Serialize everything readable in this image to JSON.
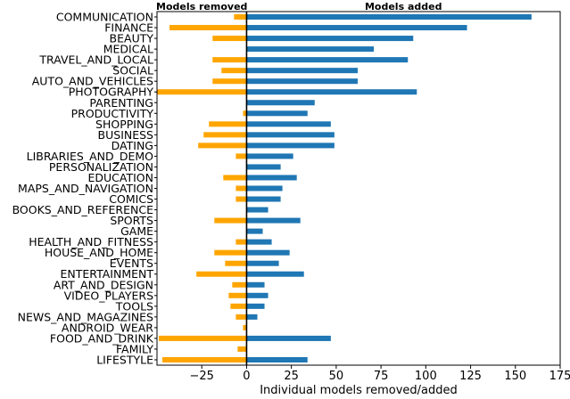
{
  "chart_data": {
    "type": "bar",
    "orientation": "horizontal",
    "categories": [
      "COMMUNICATION",
      "FINANCE",
      "BEAUTY",
      "MEDICAL",
      "TRAVEL_AND_LOCAL",
      "SOCIAL",
      "AUTO_AND_VEHICLES",
      "PHOTOGRAPHY",
      "PARENTING",
      "PRODUCTIVITY",
      "SHOPPING",
      "BUSINESS",
      "DATING",
      "LIBRARIES_AND_DEMO",
      "PERSONALIZATION",
      "EDUCATION",
      "MAPS_AND_NAVIGATION",
      "COMICS",
      "BOOKS_AND_REFERENCE",
      "SPORTS",
      "GAME",
      "HEALTH_AND_FITNESS",
      "HOUSE_AND_HOME",
      "EVENTS",
      "ENTERTAINMENT",
      "ART_AND_DESIGN",
      "VIDEO_PLAYERS",
      "TOOLS",
      "NEWS_AND_MAGAZINES",
      "ANDROID_WEAR",
      "FOOD_AND_DRINK",
      "FAMILY",
      "LIFESTYLE"
    ],
    "series": [
      {
        "name": "Models removed",
        "color": "#FFA500",
        "values": [
          -7,
          -43,
          -19,
          0,
          -19,
          -14,
          -19,
          -50,
          0,
          -2,
          -21,
          -24,
          -27,
          -6,
          0,
          -13,
          -6,
          -6,
          0,
          -18,
          0,
          -6,
          -18,
          -12,
          -28,
          -8,
          -10,
          -9,
          -6,
          -2,
          -49,
          -5,
          -47
        ]
      },
      {
        "name": "Models added",
        "color": "#1F77B4",
        "values": [
          159,
          123,
          93,
          71,
          90,
          62,
          62,
          95,
          38,
          34,
          47,
          49,
          49,
          26,
          19,
          28,
          20,
          19,
          12,
          30,
          9,
          14,
          24,
          18,
          32,
          10,
          12,
          10,
          6,
          0,
          47,
          0,
          34
        ]
      }
    ],
    "xlabel": "Individual models removed/added",
    "ylabel": "",
    "xlim": [
      -50,
      175
    ],
    "xticks": [
      -25,
      0,
      25,
      50,
      75,
      100,
      125,
      150,
      175
    ],
    "xtick_labels": [
      "−25",
      "0",
      "25",
      "50",
      "75",
      "100",
      "125",
      "150",
      "175"
    ],
    "grid": false,
    "side_labels": {
      "left": "Models removed",
      "right": "Models added"
    },
    "zero_line_color": "#000000"
  }
}
